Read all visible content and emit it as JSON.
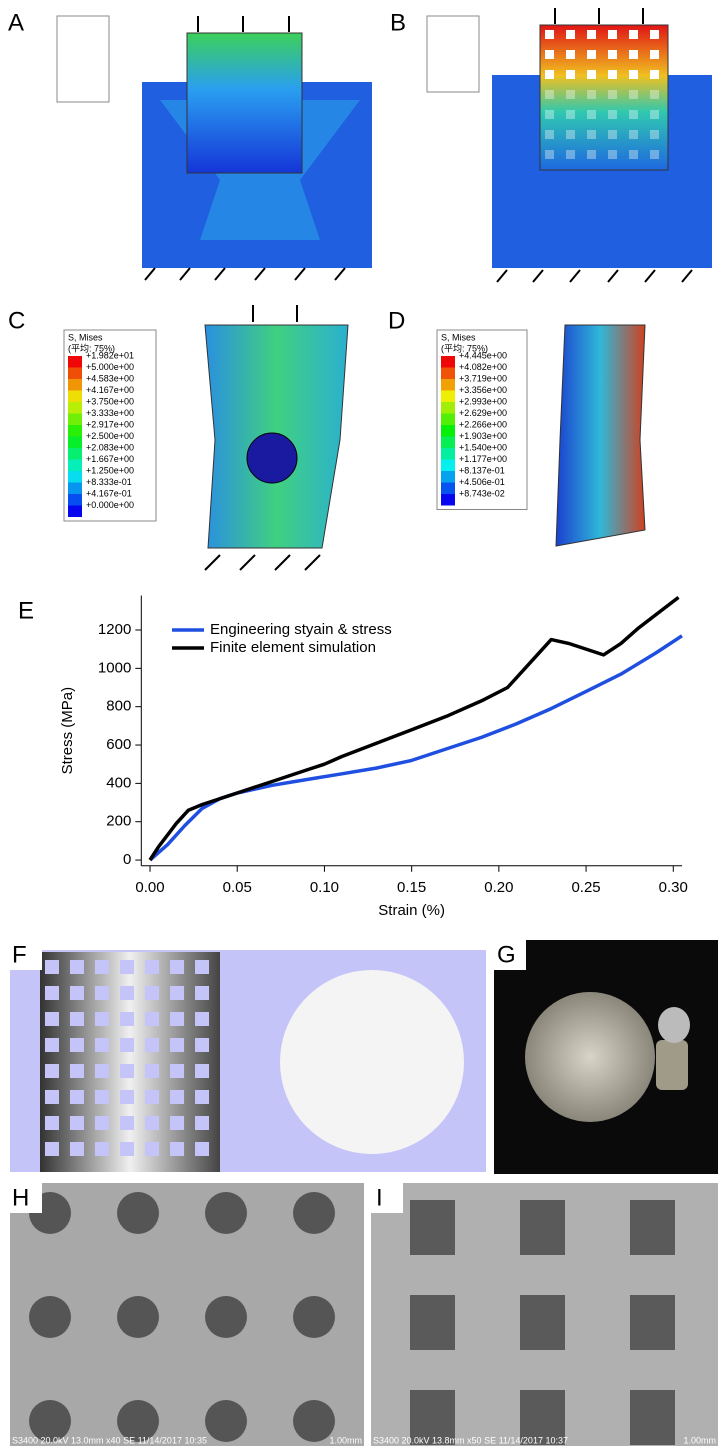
{
  "panels": {
    "A": {
      "letter": "A"
    },
    "B": {
      "letter": "B"
    },
    "C": {
      "letter": "C",
      "legend": {
        "title": "S, Mises",
        "subtitle": "(平均: 75%)",
        "levels": [
          "+1.982e+01",
          "+5.000e+00",
          "+4.583e+00",
          "+4.167e+00",
          "+3.750e+00",
          "+3.333e+00",
          "+2.917e+00",
          "+2.500e+00",
          "+2.083e+00",
          "+1.667e+00",
          "+1.250e+00",
          "+8.333e-01",
          "+4.167e-01",
          "+0.000e+00"
        ]
      }
    },
    "D": {
      "letter": "D",
      "legend": {
        "title": "S, Mises",
        "subtitle": "(平均: 75%)",
        "levels": [
          "+4.445e+00",
          "+4.082e+00",
          "+3.719e+00",
          "+3.356e+00",
          "+2.993e+00",
          "+2.629e+00",
          "+2.266e+00",
          "+1.903e+00",
          "+1.540e+00",
          "+1.177e+00",
          "+8.137e-01",
          "+4.506e-01",
          "+8.743e-02"
        ]
      }
    },
    "E": {
      "letter": "E"
    },
    "F": {
      "letter": "F"
    },
    "G": {
      "letter": "G"
    },
    "H": {
      "letter": "H",
      "caption": "S3400 20.0kV 13.0mm x40 SE  11/14/2017 10:35",
      "scale": "1.00mm"
    },
    "I": {
      "letter": "I",
      "caption": "S3400 20.0kV 13.8mm x50 SE  11/14/2017 10:37",
      "scale": "1.00mm"
    }
  },
  "chart_data": {
    "type": "line",
    "x_label": "Strain (%)",
    "y_label": "Stress (MPa)",
    "xlim": [
      -0.005,
      0.305
    ],
    "ylim": [
      -30,
      1380
    ],
    "xticks": [
      {
        "value": 0,
        "label": "0.00"
      },
      0.05,
      {
        "value": 0.1,
        "label": "0.10"
      },
      0.15,
      {
        "value": 0.2,
        "label": "0.20"
      },
      0.25,
      {
        "value": 0.3,
        "label": "0.30"
      }
    ],
    "yticks": [
      0,
      200,
      400,
      600,
      800,
      1000,
      1200
    ],
    "series": [
      {
        "name": "Engineering styain & stress",
        "color": "#1f4fe0",
        "x": [
          0,
          0.01,
          0.02,
          0.03,
          0.04,
          0.05,
          0.07,
          0.09,
          0.11,
          0.13,
          0.15,
          0.17,
          0.19,
          0.21,
          0.23,
          0.25,
          0.27,
          0.29,
          0.305
        ],
        "values": [
          0,
          80,
          180,
          270,
          320,
          350,
          390,
          420,
          450,
          480,
          520,
          580,
          640,
          710,
          790,
          880,
          970,
          1080,
          1170
        ]
      },
      {
        "name": "Finite element simulation",
        "color": "#000000",
        "x": [
          0,
          0.005,
          0.01,
          0.015,
          0.022,
          0.03,
          0.05,
          0.07,
          0.09,
          0.1,
          0.11,
          0.13,
          0.15,
          0.17,
          0.19,
          0.205,
          0.22,
          0.23,
          0.24,
          0.26,
          0.27,
          0.28,
          0.29,
          0.303
        ],
        "values": [
          0,
          70,
          130,
          190,
          260,
          290,
          350,
          410,
          470,
          500,
          540,
          610,
          680,
          750,
          830,
          900,
          1050,
          1150,
          1130,
          1070,
          1130,
          1210,
          1280,
          1370
        ]
      }
    ]
  }
}
